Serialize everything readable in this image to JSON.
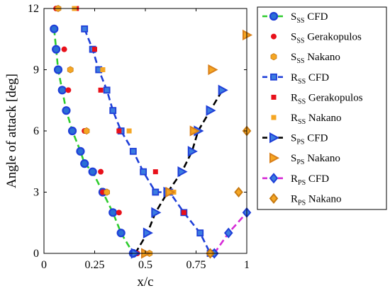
{
  "chart_data": {
    "type": "scatter",
    "xlabel": "x/c",
    "ylabel": "Angle of attack [deg]",
    "xlim": [
      0,
      1
    ],
    "ylim": [
      0,
      12
    ],
    "xticks": [
      0,
      0.25,
      0.5,
      0.75,
      1
    ],
    "xtick_labels": [
      "0",
      "0.25",
      "0.5",
      "0.75",
      "1"
    ],
    "yticks": [
      0,
      3,
      6,
      9,
      12
    ],
    "ytick_labels": [
      "0",
      "3",
      "6",
      "9",
      "12"
    ],
    "grid": false,
    "legend_position": "outside-right",
    "series": [
      {
        "name_base": "S",
        "name_sub": "SS",
        "name_suffix": " CFD",
        "marker": "circle",
        "color": "#1f3fd8",
        "fill": "#2a6fd6",
        "line": "#2ecc2e",
        "dashed": true,
        "x": [
          0.05,
          0.06,
          0.07,
          0.09,
          0.11,
          0.14,
          0.18,
          0.2,
          0.24,
          0.29,
          0.34,
          0.38,
          0.44
        ],
        "y": [
          11,
          10,
          9,
          8,
          7,
          6,
          5,
          4.4,
          4,
          3,
          2,
          1,
          0
        ]
      },
      {
        "name_base": "S",
        "name_sub": "SS",
        "name_suffix": " Gerakopulos",
        "marker": "dot",
        "color": "#e8101a",
        "fill": "#e8101a",
        "line": null,
        "x": [
          0.06,
          0.1,
          0.12,
          0.2,
          0.28,
          0.29,
          0.37,
          0.46
        ],
        "y": [
          12,
          10,
          8,
          6,
          4,
          3,
          2,
          0
        ]
      },
      {
        "name_base": "S",
        "name_sub": "SS",
        "name_suffix": " Nakano",
        "marker": "hexagon",
        "color": "#c77a12",
        "fill": "#f5a623",
        "line": null,
        "x": [
          0.07,
          0.13,
          0.21,
          0.31,
          0.52
        ],
        "y": [
          12,
          9,
          6,
          3,
          0
        ]
      },
      {
        "name_base": "R",
        "name_sub": "SS",
        "name_suffix": " CFD",
        "marker": "square",
        "color": "#1f3fd8",
        "fill": "#3b7de0",
        "line": "#1f3fd8",
        "dashed": true,
        "x": [
          0.2,
          0.24,
          0.27,
          0.31,
          0.34,
          0.38,
          0.44,
          0.49,
          0.55,
          0.62,
          0.69,
          0.77,
          0.82
        ],
        "y": [
          11,
          10,
          9,
          8,
          7,
          6,
          5,
          4,
          3,
          3,
          2,
          1,
          0
        ]
      },
      {
        "name_base": "R",
        "name_sub": "SS",
        "name_suffix": " Gerakopulos",
        "marker": "smallsquare",
        "color": "#e8101a",
        "fill": "#e8101a",
        "line": null,
        "x": [
          0.16,
          0.25,
          0.28,
          0.37,
          0.55,
          0.69,
          0.84
        ],
        "y": [
          12,
          10,
          8,
          6,
          4,
          2,
          0
        ]
      },
      {
        "name_base": "R",
        "name_sub": "SS",
        "name_suffix": " Nakano",
        "marker": "smallsquare",
        "color": "#e08e1c",
        "fill": "#f5a623",
        "line": null,
        "x": [
          0.15,
          0.29,
          0.42,
          0.64,
          0.83
        ],
        "y": [
          12,
          9,
          6,
          3,
          0
        ]
      },
      {
        "name_base": "S",
        "name_sub": "PS",
        "name_suffix": " CFD",
        "marker": "triangle-right",
        "color": "#1f3fd8",
        "fill": "#3b7de0",
        "line": "#000000",
        "dashed": true,
        "x": [
          0.45,
          0.51,
          0.55,
          0.61,
          0.68,
          0.73,
          0.76,
          0.82,
          0.88
        ],
        "y": [
          0,
          1,
          2,
          3,
          4,
          5,
          6,
          7,
          8
        ]
      },
      {
        "name_base": "S",
        "name_sub": "PS",
        "name_suffix": " Nakano",
        "marker": "triangle-right",
        "color": "#d9801a",
        "fill": "#f5a623",
        "line": null,
        "x": [
          0.5,
          0.62,
          0.74,
          0.83,
          1.0
        ],
        "y": [
          0,
          3,
          6,
          9,
          10.7
        ]
      },
      {
        "name_base": "R",
        "name_sub": "PS",
        "name_suffix": " CFD",
        "marker": "diamond",
        "color": "#1f3fd8",
        "fill": "#3b7de0",
        "line": "#d62ad6",
        "dashed": true,
        "x": [
          0.84,
          0.91,
          1.0
        ],
        "y": [
          0,
          1,
          2
        ]
      },
      {
        "name_base": "R",
        "name_sub": "PS",
        "name_suffix": " Nakano",
        "marker": "diamond",
        "color": "#c77a12",
        "fill": "#f5a623",
        "line": null,
        "x": [
          0.82,
          0.96,
          1.0
        ],
        "y": [
          0,
          3,
          6
        ]
      }
    ]
  }
}
